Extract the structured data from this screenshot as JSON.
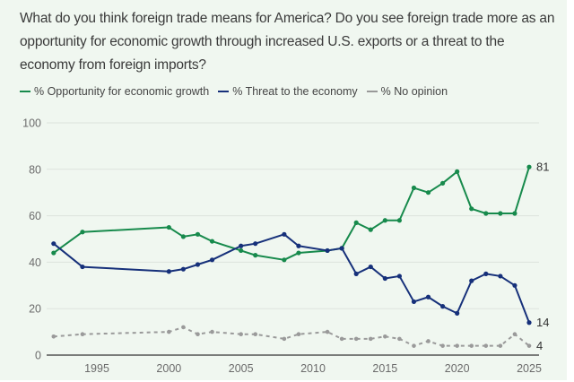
{
  "question": "What do you think foreign trade means for America? Do you see foreign trade more as an opportunity for economic growth through increased U.S. exports or a threat to the economy from foreign imports?",
  "legend": [
    {
      "label": "% Opportunity for economic growth",
      "color": "#178a4c",
      "style": "solid"
    },
    {
      "label": "% Threat to the economy",
      "color": "#16307a",
      "style": "solid"
    },
    {
      "label": "% No opinion",
      "color": "#9a9a9a",
      "style": "dashed"
    }
  ],
  "chart_data": {
    "type": "line",
    "title": "What do you think foreign trade means for America?",
    "xlabel": "",
    "ylabel": "",
    "x": [
      1992,
      1994,
      2000,
      2001,
      2002,
      2003,
      2005,
      2006,
      2008,
      2009,
      2011,
      2012,
      2013,
      2014,
      2015,
      2016,
      2017,
      2018,
      2019,
      2020,
      2021,
      2022,
      2023,
      2024,
      2025
    ],
    "xlim": [
      1991,
      2025.5
    ],
    "ylim": [
      0,
      100
    ],
    "x_ticks": [
      "1995",
      "2000",
      "2005",
      "2010",
      "2015",
      "2020",
      "2025"
    ],
    "y_ticks": [
      "0",
      "20",
      "40",
      "60",
      "80",
      "100"
    ],
    "grid": true,
    "legend_position": "top-left",
    "series": [
      {
        "name": "% Opportunity for economic growth",
        "color": "#178a4c",
        "dashed": false,
        "values": [
          44,
          53,
          55,
          51,
          52,
          49,
          45,
          43,
          41,
          44,
          45,
          46,
          57,
          54,
          58,
          58,
          72,
          70,
          74,
          79,
          63,
          61,
          61,
          61,
          81
        ],
        "end_label": "81"
      },
      {
        "name": "% Threat to the economy",
        "color": "#16307a",
        "dashed": false,
        "values": [
          48,
          38,
          36,
          37,
          39,
          41,
          47,
          48,
          52,
          47,
          45,
          46,
          35,
          38,
          33,
          34,
          23,
          25,
          21,
          18,
          32,
          35,
          34,
          30,
          14
        ],
        "end_label": "14"
      },
      {
        "name": "% No opinion",
        "color": "#9a9a9a",
        "dashed": true,
        "values": [
          8,
          9,
          10,
          12,
          9,
          10,
          9,
          9,
          7,
          9,
          10,
          7,
          7,
          7,
          8,
          7,
          4,
          6,
          4,
          4,
          4,
          4,
          4,
          9,
          4
        ],
        "end_label": "4"
      }
    ]
  }
}
